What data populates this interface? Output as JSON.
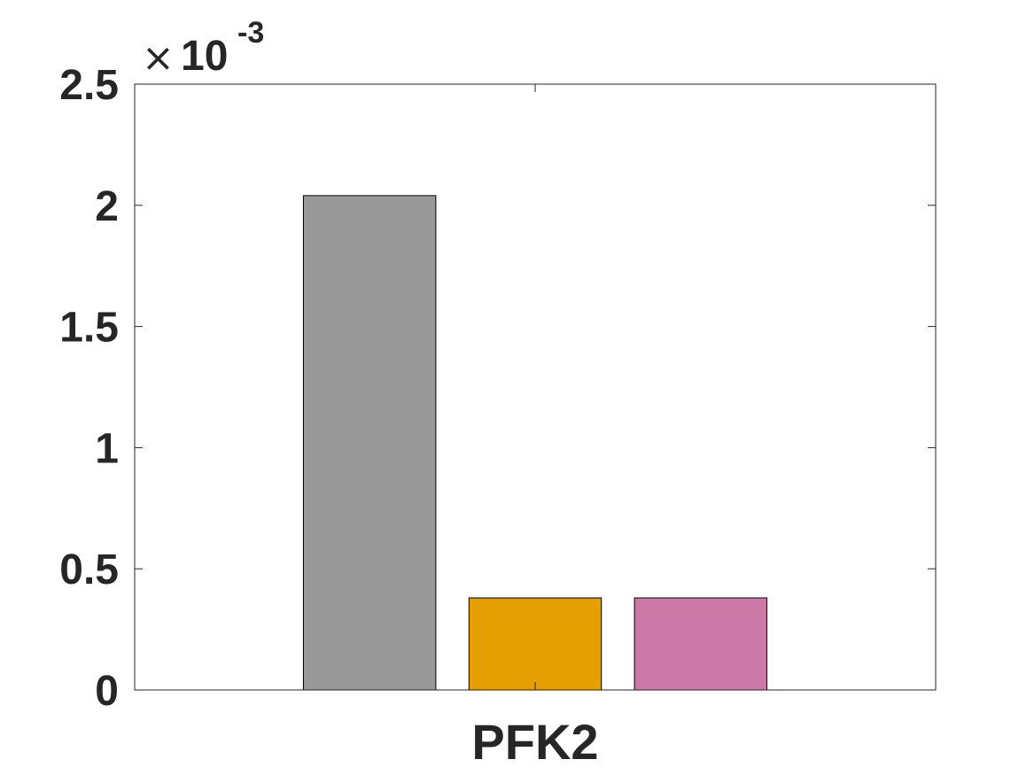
{
  "chart_data": {
    "type": "bar",
    "title": "",
    "xlabel": "",
    "ylabel": "",
    "categories": [
      "PFK2"
    ],
    "series": [
      {
        "name": "",
        "values": [
          0.00204
        ],
        "color": "#999999"
      },
      {
        "name": "",
        "values": [
          0.00038
        ],
        "color": "#E69F00"
      },
      {
        "name": "",
        "values": [
          0.00038
        ],
        "color": "#CC79A7"
      }
    ],
    "ylim": [
      0,
      0.0025
    ],
    "yticks": [
      0,
      0.0005,
      0.001,
      0.0015,
      0.002,
      0.0025
    ],
    "ytick_labels": [
      "0",
      "0.5",
      "1",
      "1.5",
      "2",
      "2.5"
    ],
    "y_multiplier": {
      "symbol": "×",
      "base": "10",
      "exponent": "-3"
    },
    "grid": false,
    "legend": "none"
  }
}
